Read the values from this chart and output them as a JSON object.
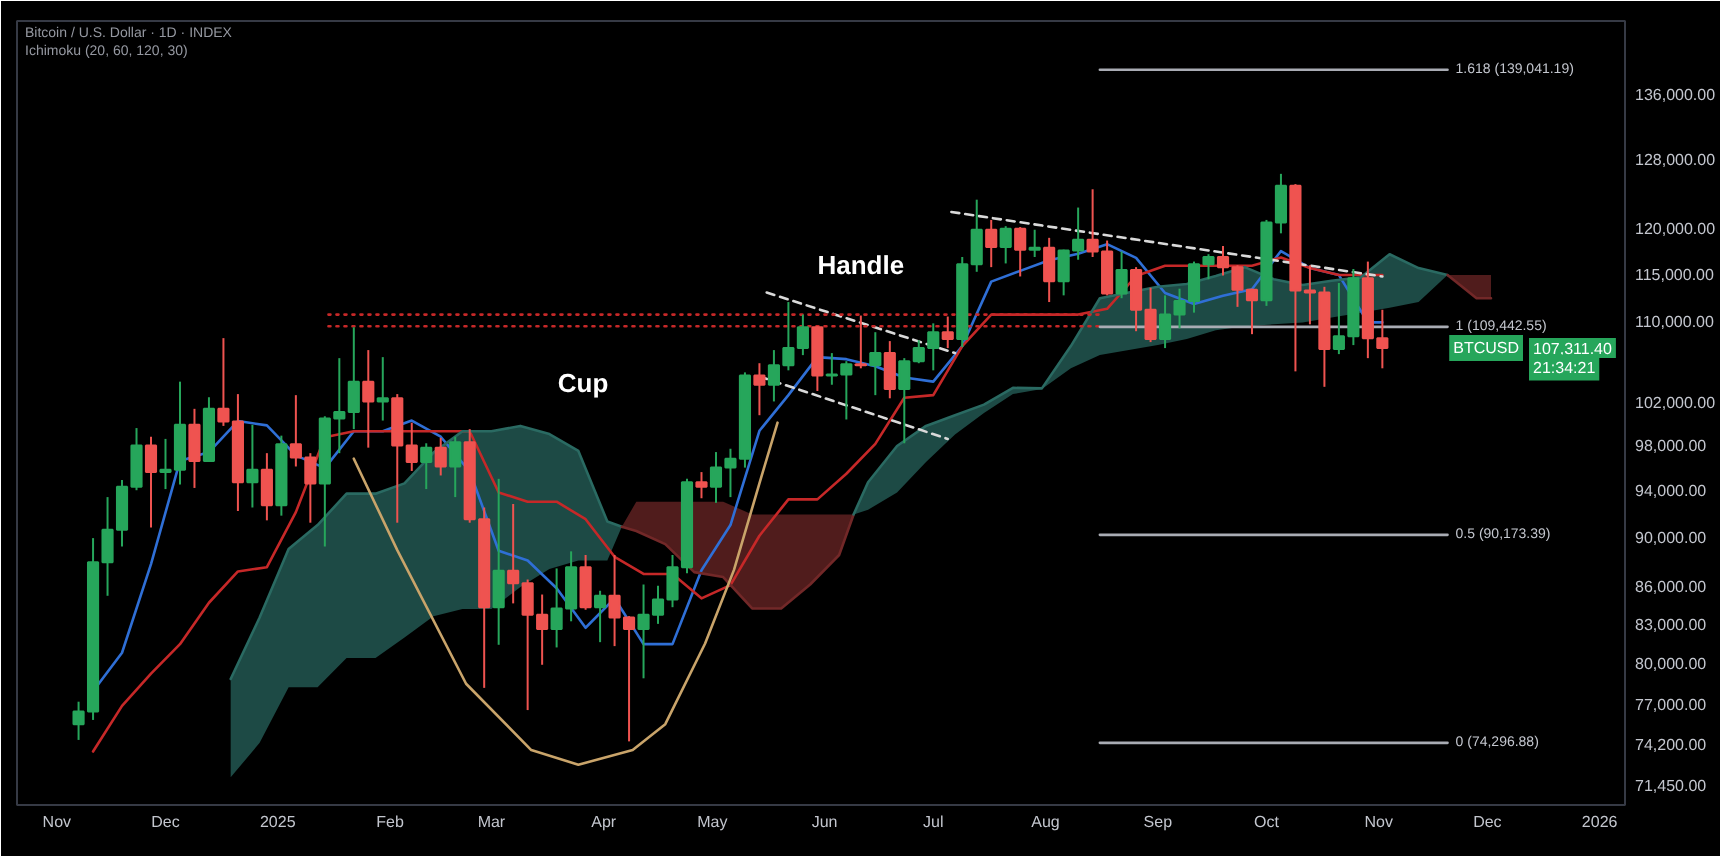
{
  "chart_data": {
    "type": "candlestick",
    "title": "Bitcoin / U.S. Dollar · 1D · INDEX",
    "subtitle": "Ichimoku (20, 60, 120, 30)",
    "log": true,
    "xlim": [
      "2024-10-21",
      "2026-01-08"
    ],
    "ylim": [
      70120,
      145500
    ],
    "xticks": [
      {
        "value": "2024-11-01",
        "label": "Nov"
      },
      {
        "value": "2024-12-01",
        "label": "Dec"
      },
      {
        "value": "2025-01-01",
        "label": "2025"
      },
      {
        "value": "2025-02-01",
        "label": "Feb"
      },
      {
        "value": "2025-03-01",
        "label": "Mar"
      },
      {
        "value": "2025-04-01",
        "label": "Apr"
      },
      {
        "value": "2025-05-01",
        "label": "May"
      },
      {
        "value": "2025-06-01",
        "label": "Jun"
      },
      {
        "value": "2025-07-01",
        "label": "Jul"
      },
      {
        "value": "2025-08-01",
        "label": "Aug"
      },
      {
        "value": "2025-09-01",
        "label": "Sep"
      },
      {
        "value": "2025-10-01",
        "label": "Oct"
      },
      {
        "value": "2025-11-01",
        "label": "Nov"
      },
      {
        "value": "2025-12-01",
        "label": "Dec"
      },
      {
        "value": "2026-01-01",
        "label": "2026"
      }
    ],
    "yticks": [
      {
        "value": 71450,
        "label": "71,450.00"
      },
      {
        "value": 74200,
        "label": "74,200.00"
      },
      {
        "value": 77000,
        "label": "77,000.00"
      },
      {
        "value": 80000,
        "label": "80,000.00"
      },
      {
        "value": 83000,
        "label": "83,000.00"
      },
      {
        "value": 86000,
        "label": "86,000.00"
      },
      {
        "value": 90000,
        "label": "90,000.00"
      },
      {
        "value": 94000,
        "label": "94,000.00"
      },
      {
        "value": 98000,
        "label": "98,000.00"
      },
      {
        "value": 102000,
        "label": "102,000.00"
      },
      {
        "value": 110000,
        "label": "110,000.00"
      },
      {
        "value": 115000,
        "label": "115,000.00"
      },
      {
        "value": 120000,
        "label": "120,000.00"
      },
      {
        "value": 128000,
        "label": "128,000.00"
      },
      {
        "value": 136000,
        "label": "136,000.00"
      }
    ],
    "series": [
      {
        "name": "BTCUSD",
        "color": "#26a65b",
        "x": [
          "2024-11-07",
          "2024-11-11",
          "2024-11-15",
          "2024-11-19",
          "2024-11-23",
          "2024-11-27",
          "2024-12-01",
          "2024-12-05",
          "2024-12-09",
          "2024-12-13",
          "2024-12-17",
          "2024-12-21",
          "2024-12-25",
          "2024-12-29",
          "2025-01-02",
          "2025-01-06",
          "2025-01-10",
          "2025-01-14",
          "2025-01-18",
          "2025-01-22",
          "2025-01-26",
          "2025-01-30",
          "2025-02-03",
          "2025-02-07",
          "2025-02-11",
          "2025-02-15",
          "2025-02-19",
          "2025-02-23",
          "2025-02-27",
          "2025-03-03",
          "2025-03-07",
          "2025-03-11",
          "2025-03-15",
          "2025-03-19",
          "2025-03-23",
          "2025-03-27",
          "2025-03-31",
          "2025-04-04",
          "2025-04-08",
          "2025-04-12",
          "2025-04-16",
          "2025-04-20",
          "2025-04-24",
          "2025-04-28",
          "2025-05-02",
          "2025-05-06",
          "2025-05-10",
          "2025-05-14",
          "2025-05-18",
          "2025-05-22",
          "2025-05-26",
          "2025-05-30",
          "2025-06-03",
          "2025-06-07",
          "2025-06-11",
          "2025-06-15",
          "2025-06-19",
          "2025-06-23",
          "2025-06-27",
          "2025-07-01",
          "2025-07-05",
          "2025-07-09",
          "2025-07-13",
          "2025-07-17",
          "2025-07-21",
          "2025-07-25",
          "2025-07-29",
          "2025-08-02",
          "2025-08-06",
          "2025-08-10",
          "2025-08-14",
          "2025-08-18",
          "2025-08-22",
          "2025-08-26",
          "2025-08-30",
          "2025-09-03",
          "2025-09-07",
          "2025-09-11",
          "2025-09-15",
          "2025-09-19",
          "2025-09-23",
          "2025-09-27",
          "2025-10-01",
          "2025-10-05",
          "2025-10-09",
          "2025-10-13",
          "2025-10-17",
          "2025-10-21",
          "2025-10-25",
          "2025-10-29",
          "2025-11-02"
        ],
        "ohlc": [
          [
            75600,
            77200,
            74500,
            76500
          ],
          [
            76500,
            89900,
            75900,
            87900
          ],
          [
            87900,
            93400,
            85200,
            90600
          ],
          [
            90600,
            94900,
            89200,
            94300
          ],
          [
            94300,
            99600,
            94000,
            98000
          ],
          [
            98000,
            98800,
            90800,
            95600
          ],
          [
            95600,
            98600,
            94100,
            95800
          ],
          [
            95800,
            104000,
            94500,
            99900
          ],
          [
            99900,
            101400,
            94200,
            96600
          ],
          [
            96600,
            102500,
            96500,
            101400
          ],
          [
            101400,
            108300,
            99800,
            100200
          ],
          [
            100200,
            102800,
            92200,
            94700
          ],
          [
            94700,
            99900,
            92500,
            95800
          ],
          [
            95800,
            97300,
            91400,
            92700
          ],
          [
            92700,
            98900,
            91800,
            98100
          ],
          [
            98100,
            102700,
            96100,
            96900
          ],
          [
            96900,
            97300,
            91200,
            94600
          ],
          [
            94600,
            100700,
            89200,
            100500
          ],
          [
            100500,
            106300,
            97300,
            101100
          ],
          [
            101100,
            109400,
            99500,
            104000
          ],
          [
            104000,
            107100,
            97800,
            102100
          ],
          [
            102100,
            106400,
            100300,
            102400
          ],
          [
            102400,
            102800,
            91200,
            98000
          ],
          [
            98000,
            100100,
            95700,
            96500
          ],
          [
            96500,
            98200,
            94100,
            97800
          ],
          [
            97800,
            98700,
            95300,
            96100
          ],
          [
            96100,
            98800,
            93400,
            98300
          ],
          [
            98300,
            99500,
            91200,
            91500
          ],
          [
            91500,
            92500,
            78200,
            84300
          ],
          [
            84300,
            95000,
            81400,
            87200
          ],
          [
            87200,
            92800,
            84600,
            86200
          ],
          [
            86200,
            86500,
            76600,
            83700
          ],
          [
            83700,
            85300,
            79900,
            82600
          ],
          [
            82600,
            87400,
            81200,
            84200
          ],
          [
            84200,
            88800,
            83200,
            87500
          ],
          [
            87500,
            88500,
            84100,
            84300
          ],
          [
            84300,
            85600,
            81600,
            85200
          ],
          [
            85200,
            88500,
            81300,
            83500
          ],
          [
            83500,
            83600,
            74400,
            82600
          ],
          [
            82600,
            86100,
            78900,
            83700
          ],
          [
            83700,
            86000,
            83000,
            84900
          ],
          [
            84900,
            88500,
            84300,
            87500
          ],
          [
            87500,
            95000,
            87000,
            94700
          ],
          [
            94700,
            95600,
            93300,
            94300
          ],
          [
            94300,
            97400,
            92900,
            96000
          ],
          [
            96000,
            97700,
            93400,
            96800
          ],
          [
            96800,
            104900,
            96000,
            104600
          ],
          [
            104600,
            105800,
            100800,
            103700
          ],
          [
            103700,
            107100,
            102100,
            105600
          ],
          [
            105600,
            112000,
            105100,
            107300
          ],
          [
            107300,
            110700,
            106600,
            109400
          ],
          [
            109400,
            109500,
            103100,
            104600
          ],
          [
            104600,
            106800,
            103700,
            104700
          ],
          [
            104700,
            106000,
            100400,
            105700
          ],
          [
            105700,
            110600,
            105300,
            105600
          ],
          [
            105600,
            108900,
            102700,
            106800
          ],
          [
            106800,
            108000,
            102400,
            103300
          ],
          [
            103300,
            106300,
            98200,
            106000
          ],
          [
            106000,
            108100,
            105800,
            107300
          ],
          [
            107300,
            109800,
            105100,
            108900
          ],
          [
            108900,
            110500,
            107300,
            108200
          ],
          [
            108200,
            116800,
            107400,
            116000
          ],
          [
            116000,
            123200,
            115200,
            119800
          ],
          [
            119800,
            120900,
            115700,
            117900
          ],
          [
            117900,
            120200,
            116100,
            119900
          ],
          [
            119900,
            120100,
            114700,
            117600
          ],
          [
            117600,
            119800,
            116800,
            117800
          ],
          [
            117800,
            118900,
            112000,
            114200
          ],
          [
            114200,
            117600,
            112700,
            117500
          ],
          [
            117500,
            122300,
            116500,
            118700
          ],
          [
            118700,
            124400,
            116800,
            117400
          ],
          [
            117400,
            118600,
            112700,
            112900
          ],
          [
            112900,
            117400,
            112400,
            115400
          ],
          [
            115400,
            115700,
            109000,
            111200
          ],
          [
            111200,
            113500,
            107900,
            108200
          ],
          [
            108200,
            112700,
            107300,
            110700
          ],
          [
            110700,
            113400,
            109300,
            112100
          ],
          [
            112100,
            116300,
            110900,
            116000
          ],
          [
            116000,
            117100,
            114400,
            116800
          ],
          [
            116800,
            118000,
            114800,
            115700
          ],
          [
            115700,
            115900,
            111500,
            113300
          ],
          [
            113300,
            113400,
            108700,
            112200
          ],
          [
            112200,
            120900,
            111600,
            120600
          ],
          [
            120600,
            126200,
            119400,
            124800
          ],
          [
            124800,
            125000,
            105000,
            113200
          ],
          [
            113200,
            115900,
            109700,
            113000
          ],
          [
            113000,
            113600,
            103500,
            107200
          ],
          [
            107200,
            114000,
            106700,
            108500
          ],
          [
            108500,
            115500,
            107600,
            114500
          ],
          [
            114500,
            116300,
            106300,
            108300
          ],
          [
            108300,
            111200,
            105300,
            107311.4
          ]
        ],
        "colors": [
          "#26a65b",
          "#26a65b",
          "#26a65b",
          "#26a65b",
          "#26a65b",
          "#ef5350",
          "#26a65b",
          "#26a65b",
          "#ef5350",
          "#26a65b",
          "#ef5350",
          "#ef5350",
          "#26a65b",
          "#ef5350",
          "#26a65b",
          "#ef5350",
          "#ef5350",
          "#26a65b",
          "#26a65b",
          "#26a65b",
          "#ef5350",
          "#26a65b",
          "#ef5350",
          "#ef5350",
          "#26a65b",
          "#ef5350",
          "#26a65b",
          "#ef5350",
          "#ef5350",
          "#26a65b",
          "#ef5350",
          "#ef5350",
          "#ef5350",
          "#26a65b",
          "#26a65b",
          "#ef5350",
          "#26a65b",
          "#ef5350",
          "#ef5350",
          "#26a65b",
          "#26a65b",
          "#26a65b",
          "#26a65b",
          "#ef5350",
          "#26a65b",
          "#26a65b",
          "#26a65b",
          "#ef5350",
          "#26a65b",
          "#26a65b",
          "#26a65b",
          "#ef5350",
          "#26a65b",
          "#26a65b",
          "#ef5350",
          "#26a65b",
          "#ef5350",
          "#26a65b",
          "#26a65b",
          "#26a65b",
          "#ef5350",
          "#26a65b",
          "#26a65b",
          "#ef5350",
          "#26a65b",
          "#ef5350",
          "#26a65b",
          "#ef5350",
          "#26a65b",
          "#26a65b",
          "#ef5350",
          "#ef5350",
          "#26a65b",
          "#ef5350",
          "#ef5350",
          "#26a65b",
          "#26a65b",
          "#26a65b",
          "#26a65b",
          "#ef5350",
          "#ef5350",
          "#ef5350",
          "#26a65b",
          "#26a65b",
          "#ef5350",
          "#ef5350",
          "#ef5350",
          "#26a65b",
          "#26a65b",
          "#ef5350",
          "#ef5350"
        ],
        "value_labels": [
          null,
          null,
          null,
          null,
          null,
          null,
          null,
          null,
          null,
          null,
          null,
          null,
          null,
          null,
          null,
          null,
          null,
          null,
          null,
          null,
          null,
          null,
          null,
          null,
          null,
          null,
          null,
          null,
          null,
          null,
          null,
          null,
          null,
          null,
          null,
          null,
          null,
          null,
          null,
          null,
          null,
          null,
          null,
          null,
          null,
          null,
          null,
          null,
          null,
          null,
          null,
          null,
          null,
          null,
          null,
          null,
          null,
          null,
          null,
          null,
          null,
          null,
          null,
          null,
          null,
          null,
          null,
          null,
          null,
          null,
          null,
          null,
          null,
          null,
          null,
          null,
          null,
          null,
          null,
          null,
          null,
          null,
          null,
          null,
          null,
          null,
          null,
          null,
          null,
          null,
          "107,311.40"
        ]
      },
      {
        "type": "line",
        "color": "#2f6fd6",
        "x": [
          "2024-11-11",
          "2024-11-19",
          "2024-11-27",
          "2024-12-05",
          "2024-12-13",
          "2024-12-21",
          "2024-12-29",
          "2025-01-06",
          "2025-01-14",
          "2025-01-22",
          "2025-01-30",
          "2025-02-07",
          "2025-02-15",
          "2025-02-23",
          "2025-03-03",
          "2025-03-11",
          "2025-03-19",
          "2025-03-27",
          "2025-04-04",
          "2025-04-12",
          "2025-04-20",
          "2025-04-28",
          "2025-05-06",
          "2025-05-14",
          "2025-05-22",
          "2025-05-30",
          "2025-06-07",
          "2025-06-15",
          "2025-06-23",
          "2025-07-01",
          "2025-07-09",
          "2025-07-17",
          "2025-07-25",
          "2025-08-02",
          "2025-08-10",
          "2025-08-18",
          "2025-08-26",
          "2025-09-03",
          "2025-09-11",
          "2025-09-19",
          "2025-09-27",
          "2025-10-05",
          "2025-10-13",
          "2025-10-21",
          "2025-10-29",
          "2025-11-02"
        ],
        "values": [
          77950,
          80800,
          87750,
          96600,
          97400,
          100250,
          99850,
          97100,
          95950,
          99300,
          99300,
          100300,
          98800,
          95650,
          88850,
          88050,
          85800,
          82700,
          85000,
          81450,
          81450,
          87250,
          91000,
          99350,
          102700,
          106400,
          106200,
          105500,
          104400,
          104000,
          107500,
          114150,
          115300,
          116450,
          117150,
          118200,
          116700,
          112950,
          111800,
          112650,
          113350,
          117450,
          115600,
          114850,
          109900,
          109900
        ]
      },
      {
        "type": "line",
        "color": "#c62828",
        "x": [
          "2024-11-11",
          "2024-11-19",
          "2024-11-27",
          "2024-12-05",
          "2024-12-13",
          "2024-12-21",
          "2024-12-29",
          "2025-01-06",
          "2025-01-14",
          "2025-01-22",
          "2025-01-30",
          "2025-02-07",
          "2025-02-15",
          "2025-02-23",
          "2025-03-03",
          "2025-03-11",
          "2025-03-19",
          "2025-03-27",
          "2025-04-04",
          "2025-04-12",
          "2025-04-20",
          "2025-04-28",
          "2025-05-06",
          "2025-05-14",
          "2025-05-22",
          "2025-05-30",
          "2025-06-07",
          "2025-06-15",
          "2025-06-23",
          "2025-07-01",
          "2025-07-09",
          "2025-07-17",
          "2025-07-25",
          "2025-08-02",
          "2025-08-10",
          "2025-08-18",
          "2025-08-26",
          "2025-09-03",
          "2025-09-11",
          "2025-09-19",
          "2025-09-27",
          "2025-10-05",
          "2025-10-13",
          "2025-10-21",
          "2025-10-29",
          "2025-11-02"
        ],
        "values": [
          73700,
          76900,
          79250,
          81450,
          84650,
          87150,
          87500,
          92100,
          98750,
          99300,
          99300,
          99300,
          99300,
          99300,
          93800,
          93000,
          93000,
          91500,
          88350,
          86950,
          86950,
          85000,
          86050,
          90100,
          93200,
          93200,
          95450,
          98150,
          102450,
          102700,
          107500,
          110700,
          110700,
          110700,
          110700,
          111300,
          114750,
          115850,
          115850,
          115850,
          115850,
          116750,
          115600,
          114850,
          114850,
          114850
        ]
      },
      {
        "type": "line",
        "color": "#2a6a62",
        "x": [
          "2024-12-19",
          "2024-12-27",
          "2025-01-04",
          "2025-01-12",
          "2025-01-20",
          "2025-01-28",
          "2025-02-05",
          "2025-02-13",
          "2025-02-21",
          "2025-03-01",
          "2025-03-09",
          "2025-03-17",
          "2025-03-25",
          "2025-04-02",
          "2025-04-06"
        ],
        "values": [
          78850,
          83500,
          89000,
          91000,
          93700,
          93700,
          94600,
          97350,
          99300,
          99300,
          99800,
          99050,
          97500,
          91300,
          90850
        ],
        "upper": [
          78850,
          83500,
          89000,
          91000,
          93700,
          93700,
          94600,
          97350,
          99300,
          99300,
          99800,
          99050,
          97500,
          91300,
          90850
        ],
        "lower": [
          71950,
          74300,
          78250,
          78250,
          80400,
          80400,
          81950,
          83600,
          84150,
          84150,
          85900,
          87350,
          88050,
          88050,
          90850
        ]
      },
      {
        "type": "line",
        "color": "#722828",
        "x": [
          "2025-04-06",
          "2025-04-10",
          "2025-04-18",
          "2025-04-26",
          "2025-05-04",
          "2025-05-12",
          "2025-05-20",
          "2025-05-28",
          "2025-06-05",
          "2025-06-09"
        ],
        "values": [
          90850,
          90500,
          89400,
          87100,
          86700,
          84200,
          84200,
          86100,
          88500,
          91900
        ],
        "lower": [
          90850,
          90500,
          89400,
          87100,
          86700,
          84200,
          84200,
          86100,
          88500,
          91900
        ],
        "upper": [
          90850,
          93000,
          93000,
          93000,
          93000,
          91900,
          91900,
          91900,
          91900,
          91900
        ]
      },
      {
        "type": "line",
        "color": "#2a6a62",
        "x": [
          "2025-06-09",
          "2025-06-13",
          "2025-06-21",
          "2025-06-29",
          "2025-07-07",
          "2025-07-15",
          "2025-07-23",
          "2025-07-31",
          "2025-08-08",
          "2025-08-16",
          "2025-08-24",
          "2025-09-01",
          "2025-09-09",
          "2025-09-17",
          "2025-09-25",
          "2025-10-03",
          "2025-10-11",
          "2025-10-19",
          "2025-10-27",
          "2025-11-04",
          "2025-11-12",
          "2025-11-20"
        ],
        "values": [
          91900,
          94700,
          97950,
          99800,
          100800,
          101800,
          103400,
          103350,
          107500,
          112400,
          113000,
          113600,
          113900,
          114750,
          115700,
          114400,
          113800,
          114250,
          114600,
          117100,
          115600,
          114850
        ],
        "upper": [
          91900,
          94700,
          97950,
          99800,
          100800,
          101800,
          103400,
          103350,
          107500,
          112400,
          113000,
          113600,
          113900,
          114750,
          115700,
          114400,
          113800,
          114250,
          114600,
          117100,
          115600,
          114850
        ],
        "lower": [
          91900,
          92300,
          93800,
          96500,
          99000,
          101000,
          102800,
          103300,
          105300,
          106600,
          107100,
          107600,
          108200,
          109100,
          109500,
          109700,
          109900,
          110400,
          110900,
          111400,
          112000,
          114850
        ]
      },
      {
        "type": "line",
        "color": "#722828",
        "x": [
          "2025-11-20",
          "2025-11-28",
          "2025-12-02"
        ],
        "values": [
          114850,
          112400,
          112400
        ],
        "lower": [
          114850,
          112400,
          112400
        ],
        "upper": [
          114850,
          114850,
          114850
        ]
      },
      {
        "type": "line",
        "color": "#c9a46a",
        "x": [
          "2025-01-22",
          "2025-02-03",
          "2025-02-22",
          "2025-03-12",
          "2025-03-25",
          "2025-04-09",
          "2025-04-18",
          "2025-04-29",
          "2025-05-07",
          "2025-05-14",
          "2025-05-19"
        ],
        "values": [
          96800,
          88900,
          78500,
          73800,
          72800,
          73800,
          75600,
          81500,
          87300,
          94600,
          100100
        ]
      },
      {
        "type": "line",
        "name": "Handle",
        "color": "#d9d9d9",
        "line_style": "dashed",
        "x": [
          "2025-05-16",
          "2025-07-07"
        ],
        "values": [
          113000,
          106800
        ]
      },
      {
        "type": "line",
        "color": "#d9d9d9",
        "line_style": "dashed",
        "x": [
          "2025-05-14",
          "2025-07-05"
        ],
        "values": [
          104500,
          98600
        ]
      },
      {
        "type": "line",
        "color": "#d9d9d9",
        "line_style": "dashed",
        "x": [
          "2025-07-06",
          "2025-11-02"
        ],
        "values": [
          121800,
          114700
        ]
      },
      {
        "type": "line",
        "color": "#c62828",
        "line_style": "dotted",
        "x": [
          "2025-01-15",
          "2025-08-16"
        ],
        "values": [
          110700,
          110700
        ]
      },
      {
        "type": "line",
        "color": "#c62828",
        "line_style": "dotted",
        "x": [
          "2025-01-15",
          "2025-08-16"
        ],
        "values": [
          109500,
          109500
        ]
      },
      {
        "type": "line",
        "color": "#a9acb4",
        "x": [
          "2025-08-16",
          "2025-11-20"
        ],
        "values": [
          139041.19,
          139041.19
        ]
      },
      {
        "type": "line",
        "color": "#a9acb4",
        "x": [
          "2025-08-16",
          "2025-11-20"
        ],
        "values": [
          109442.55,
          109442.55
        ]
      },
      {
        "type": "line",
        "color": "#a9acb4",
        "x": [
          "2025-08-16",
          "2025-11-20"
        ],
        "values": [
          90173.39,
          90173.39
        ]
      },
      {
        "type": "line",
        "color": "#a9acb4",
        "x": [
          "2025-08-16",
          "2025-11-20"
        ],
        "values": [
          74296.88,
          74296.88
        ]
      }
    ],
    "annotations": [
      "Cup",
      "21:34:21",
      {
        "text": "1.618 (139,041.19)",
        "x": "2025-11-20",
        "y": 139041.19
      },
      {
        "text": "1 (109,442.55)",
        "x": "2025-11-20",
        "y": 109442.55
      },
      {
        "text": "0.5 (90,173.39)",
        "x": "2025-11-20",
        "y": 90173.39
      },
      {
        "text": "0 (74,296.88)",
        "x": "2025-11-20",
        "y": 74296.88
      }
    ]
  }
}
